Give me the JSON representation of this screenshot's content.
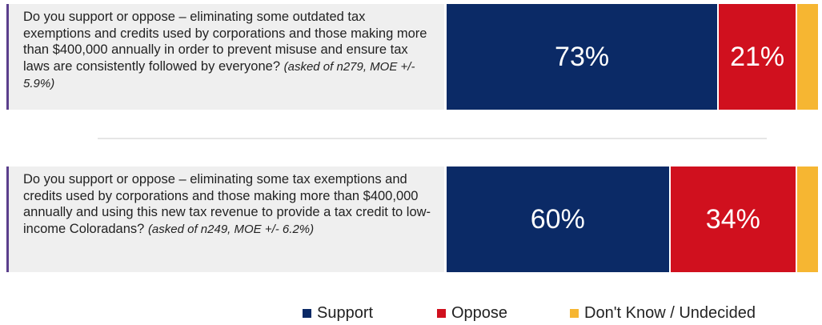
{
  "chart_data": {
    "type": "stacked-bar-horizontal",
    "categories": [
      "Do you support or oppose – eliminating some outdated tax exemptions and credits used by corporations and those making more than $400,000 annually in order to prevent misuse and ensure tax laws are consistently followed by everyone?",
      "Do you support or oppose – eliminating some tax exemptions and credits used by corporations and those making more than $400,000 annually and using this new tax revenue to provide a tax credit to low-income Coloradans?"
    ],
    "category_notes": [
      "(asked of n279, MOE +/- 5.9%)",
      "(asked of n249, MOE +/- 6.2%)"
    ],
    "xlim": [
      0,
      100
    ],
    "series": [
      {
        "name": "Support",
        "color": "#0b2a66",
        "values": [
          73,
          60
        ],
        "value_labels": [
          "73%",
          "60%"
        ]
      },
      {
        "name": "Oppose",
        "color": "#d0101e",
        "values": [
          21,
          34
        ],
        "value_labels": [
          "21%",
          "34%"
        ]
      },
      {
        "name": "Don't Know / Undecided",
        "color": "#f6b632",
        "values": [
          6,
          6
        ]
      }
    ],
    "legend": "bottom"
  }
}
